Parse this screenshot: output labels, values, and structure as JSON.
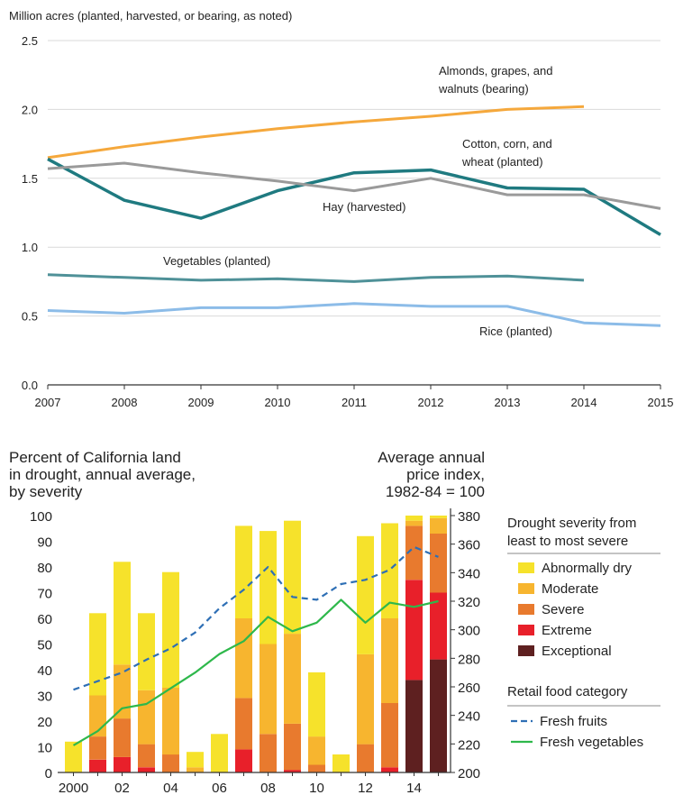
{
  "chart_data": [
    {
      "type": "line",
      "ylabel": "Million acres (planted, harvested, or bearing, as noted)",
      "x": [
        2007,
        2008,
        2009,
        2010,
        2011,
        2012,
        2013,
        2014,
        2015
      ],
      "ylim": [
        0,
        2.5
      ],
      "yticks": [
        "0.0",
        "0.5",
        "1.0",
        "1.5",
        "2.0",
        "2.5"
      ],
      "grid": true,
      "series": [
        {
          "name": "Almonds, grapes, and walnuts (bearing)",
          "color": "#f5a83c",
          "values": [
            1.65,
            1.73,
            1.8,
            1.86,
            1.91,
            1.95,
            2.0,
            2.02,
            null
          ]
        },
        {
          "name": "Cotton, corn, and wheat (planted)",
          "color": "#1f7a80",
          "values": [
            1.64,
            1.34,
            1.21,
            1.41,
            1.54,
            1.56,
            1.43,
            1.42,
            1.09
          ]
        },
        {
          "name": "Hay (harvested)",
          "color": "#9a9a9a",
          "values": [
            1.57,
            1.61,
            1.54,
            1.48,
            1.41,
            1.5,
            1.38,
            1.38,
            1.28
          ]
        },
        {
          "name": "Vegetables (planted)",
          "color": "#4f9198",
          "values": [
            0.8,
            0.78,
            0.76,
            0.77,
            0.75,
            0.78,
            0.79,
            0.76,
            null
          ]
        },
        {
          "name": "Rice (planted)",
          "color": "#8cbce8",
          "values": [
            0.54,
            0.52,
            0.56,
            0.56,
            0.59,
            0.57,
            0.57,
            0.45,
            0.43
          ]
        }
      ]
    },
    {
      "type": "bar",
      "stacked": true,
      "title_left": [
        "Percent of California land",
        "in drought, annual average,",
        "by severity"
      ],
      "title_right": [
        "Average annual",
        "price index,",
        "1982-84 = 100"
      ],
      "categories": [
        2000,
        2001,
        2002,
        2003,
        2004,
        2005,
        2006,
        2007,
        2008,
        2009,
        2010,
        2011,
        2012,
        2013,
        2014,
        2015
      ],
      "xtick_labels": [
        "2000",
        "02",
        "04",
        "06",
        "08",
        "10",
        "12",
        "14"
      ],
      "yticks_left": [
        0,
        10,
        20,
        30,
        40,
        50,
        60,
        70,
        80,
        90,
        100
      ],
      "yticks_right": [
        200,
        220,
        240,
        260,
        280,
        300,
        320,
        340,
        360,
        380
      ],
      "ylim_left": [
        0,
        100
      ],
      "ylim_right": [
        200,
        380
      ],
      "legend_title": [
        "Drought severity from",
        "least to most severe"
      ],
      "series": [
        {
          "name": "Exceptional",
          "color": "#5e2020",
          "values": [
            0,
            0,
            0,
            0,
            0,
            0,
            0,
            0,
            0,
            0,
            0,
            0,
            0,
            0,
            36,
            44
          ]
        },
        {
          "name": "Extreme",
          "color": "#e8202a",
          "values": [
            0,
            5,
            6,
            2,
            0,
            0,
            0,
            9,
            0,
            1,
            0,
            0,
            0,
            2,
            39,
            26
          ]
        },
        {
          "name": "Severe",
          "color": "#e87a2e",
          "values": [
            0,
            9,
            15,
            9,
            7,
            0,
            0,
            20,
            15,
            18,
            3,
            0,
            11,
            25,
            21,
            23
          ]
        },
        {
          "name": "Moderate",
          "color": "#f7b52f",
          "values": [
            0,
            16,
            21,
            21,
            26,
            2,
            0,
            31,
            35,
            35,
            11,
            0,
            35,
            33,
            2,
            6
          ]
        },
        {
          "name": "Abnormally dry",
          "color": "#f6e22b",
          "values": [
            12,
            32,
            40,
            30,
            45,
            6,
            15,
            36,
            44,
            44,
            25,
            7,
            46,
            37,
            2,
            1
          ]
        }
      ],
      "lines_legend_title": "Retail food category",
      "lines": [
        {
          "name": "Fresh fruits",
          "color": "#2e6fb5",
          "dashed": true,
          "values": [
            258,
            264,
            270,
            279,
            287,
            298,
            315,
            328,
            344,
            323,
            321,
            332,
            335,
            342,
            358,
            351
          ]
        },
        {
          "name": "Fresh vegetables",
          "color": "#2eb84b",
          "dashed": false,
          "values": [
            219,
            229,
            245,
            248,
            259,
            270,
            283,
            292,
            309,
            299,
            305,
            321,
            305,
            319,
            316,
            320
          ]
        }
      ]
    }
  ]
}
